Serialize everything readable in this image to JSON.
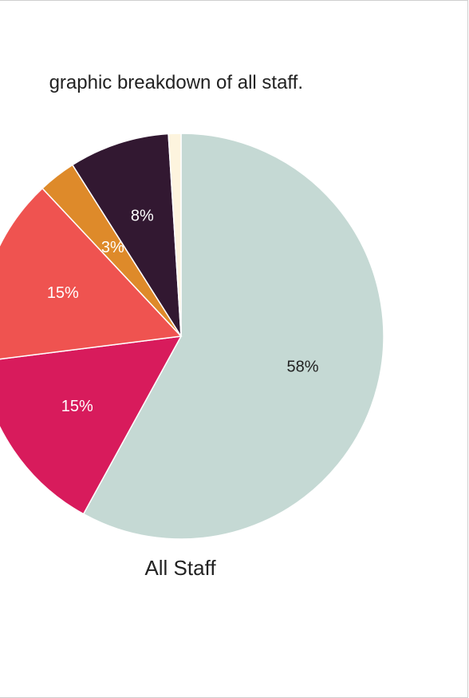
{
  "description": "graphic breakdown of all staff.",
  "chart_data": {
    "type": "pie",
    "caption": "All Staff",
    "slices": [
      {
        "value": 58,
        "label": "58%",
        "color": "#c5d9d4",
        "label_color": "#222222"
      },
      {
        "value": 15,
        "label": "15%",
        "color": "#d81b5c",
        "label_color": "#ffffff"
      },
      {
        "value": 15,
        "label": "15%",
        "color": "#ef5350",
        "label_color": "#ffffff"
      },
      {
        "value": 3,
        "label": "3%",
        "color": "#de8a2a",
        "label_color": "#ffffff"
      },
      {
        "value": 8,
        "label": "8%",
        "color": "#321831",
        "label_color": "#ffffff"
      },
      {
        "value": 1,
        "label": "",
        "color": "#fdf4de",
        "label_color": "#222222"
      }
    ]
  }
}
